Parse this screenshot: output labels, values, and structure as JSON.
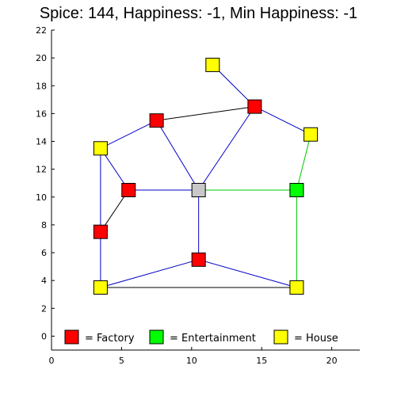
{
  "title": "Spice: 144, Happiness: -1, Min Happiness: -1",
  "chart_data": {
    "type": "scatter",
    "xlim": [
      0,
      22
    ],
    "ylim": [
      -1,
      22
    ],
    "xticks": [
      0,
      5,
      10,
      15,
      20
    ],
    "yticks": [
      0,
      2,
      4,
      6,
      8,
      10,
      12,
      14,
      16,
      18,
      20,
      22
    ],
    "grid": false,
    "legend_position": "bottom",
    "node_colors": {
      "factory": "#ff0000",
      "entertainment": "#00ff00",
      "house": "#ffff00",
      "empty": "#c8c8c8"
    },
    "edge_colors": {
      "black": "#000000",
      "blue": "#0000c8",
      "green": "#00c800"
    },
    "nodes": [
      {
        "id": "n1",
        "type": "house",
        "x": 11.5,
        "y": 19.5
      },
      {
        "id": "n2",
        "type": "factory",
        "x": 14.5,
        "y": 16.5
      },
      {
        "id": "n3",
        "type": "factory",
        "x": 7.5,
        "y": 15.5
      },
      {
        "id": "n4",
        "type": "house",
        "x": 18.5,
        "y": 14.5
      },
      {
        "id": "n5",
        "type": "house",
        "x": 3.5,
        "y": 13.5
      },
      {
        "id": "n6",
        "type": "factory",
        "x": 5.5,
        "y": 10.5
      },
      {
        "id": "n7",
        "type": "empty",
        "x": 10.5,
        "y": 10.5
      },
      {
        "id": "n8",
        "type": "entertainment",
        "x": 17.5,
        "y": 10.5
      },
      {
        "id": "n9",
        "type": "factory",
        "x": 3.5,
        "y": 7.5
      },
      {
        "id": "n10",
        "type": "factory",
        "x": 10.5,
        "y": 5.5
      },
      {
        "id": "n11",
        "type": "house",
        "x": 3.5,
        "y": 3.5
      },
      {
        "id": "n12",
        "type": "house",
        "x": 17.5,
        "y": 3.5
      }
    ],
    "edges": [
      {
        "from": "n1",
        "to": "n2",
        "color": "blue"
      },
      {
        "from": "n3",
        "to": "n2",
        "color": "black"
      },
      {
        "from": "n2",
        "to": "n4",
        "color": "blue"
      },
      {
        "from": "n2",
        "to": "n7",
        "color": "blue"
      },
      {
        "from": "n5",
        "to": "n3",
        "color": "blue"
      },
      {
        "from": "n3",
        "to": "n7",
        "color": "blue"
      },
      {
        "from": "n5",
        "to": "n6",
        "color": "blue"
      },
      {
        "from": "n5",
        "to": "n11",
        "color": "blue"
      },
      {
        "from": "n6",
        "to": "n7",
        "color": "blue"
      },
      {
        "from": "n6",
        "to": "n9",
        "color": "black"
      },
      {
        "from": "n7",
        "to": "n8",
        "color": "green"
      },
      {
        "from": "n4",
        "to": "n8",
        "color": "green"
      },
      {
        "from": "n8",
        "to": "n12",
        "color": "green"
      },
      {
        "from": "n7",
        "to": "n10",
        "color": "blue"
      },
      {
        "from": "n10",
        "to": "n11",
        "color": "blue"
      },
      {
        "from": "n10",
        "to": "n12",
        "color": "blue"
      },
      {
        "from": "n11",
        "to": "n12",
        "color": "black"
      }
    ],
    "legend": [
      {
        "type": "factory",
        "label": "= Factory"
      },
      {
        "type": "entertainment",
        "label": "= Entertainment"
      },
      {
        "type": "house",
        "label": "= House"
      }
    ]
  }
}
